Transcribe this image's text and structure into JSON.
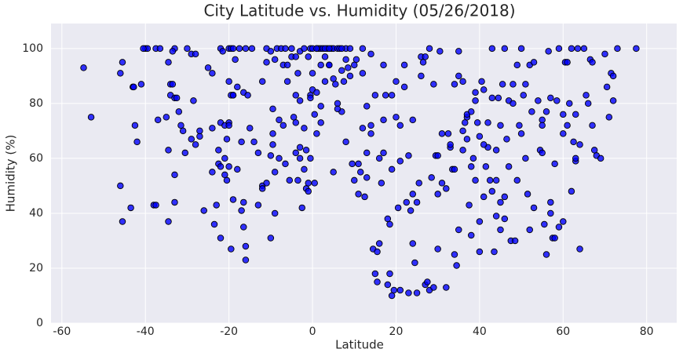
{
  "chart_data": {
    "type": "scatter",
    "title": "City Latitude vs. Humidity (05/26/2018)",
    "x_label": "Latitude",
    "y_label": "Humidity (%)",
    "color": "#0000ff",
    "edge_color": "#000000",
    "grid": true,
    "xlim": [
      -62.6,
      87.2
    ],
    "ylim": [
      0,
      109.1
    ],
    "xticks": [
      -60,
      -40,
      -20,
      0,
      20,
      40,
      60,
      80
    ],
    "yticks": [
      0,
      20,
      40,
      60,
      80,
      100
    ],
    "x": [
      -54.8,
      -53,
      -46,
      -45.5,
      -46,
      -45.5,
      -43,
      -42.8,
      -42.5,
      -42,
      -41,
      -43.5,
      -40,
      -39.5,
      -37.5,
      -36.5,
      -38,
      -37.5,
      -37,
      -35,
      -34,
      -34.5,
      -34,
      -33.5,
      -33,
      -32.5,
      -33,
      -33.5,
      -34.5,
      -34.5,
      -33,
      -33,
      -32,
      -31.5,
      -31,
      -30.5,
      -30,
      -29,
      -29,
      -28.5,
      -28,
      -28,
      -27,
      -27,
      -26,
      -25,
      -24,
      -24,
      -24,
      -23.5,
      -23,
      -22.5,
      -22.5,
      -22,
      -22,
      -22,
      -21.5,
      -22,
      -21,
      -21,
      -20.5,
      -20,
      -20,
      -20,
      -19.5,
      -19,
      -20,
      -19.5,
      -19,
      -19,
      -18.5,
      -18,
      -19.5,
      -19,
      -18,
      -20,
      -21,
      -20.5,
      -17.5,
      -17,
      -16.5,
      -17,
      -16.5,
      -16.5,
      -16,
      -16,
      -15.5,
      -16,
      -15,
      -14.5,
      -13,
      -12,
      -12,
      -12,
      -11,
      -10,
      -10,
      -9.5,
      -9.5,
      -9.5,
      -9,
      -9,
      -8.5,
      -8,
      -7.5,
      -7,
      -6.5,
      -6.5,
      -6,
      -5.5,
      -5,
      -4.5,
      -4,
      -4,
      -3.5,
      -3.5,
      -3,
      -3,
      -3,
      -2.5,
      -2,
      -1.5,
      -1.5,
      -1,
      -1,
      -0.5,
      -0.5,
      -0.5,
      -0.5,
      0,
      0,
      0.5,
      1,
      0.5,
      1,
      1.5,
      2,
      2,
      2.5,
      3,
      3.5,
      4,
      4.5,
      5,
      5,
      5.5,
      6,
      6.5,
      7,
      7.5,
      8,
      8,
      8.5,
      9,
      9.5,
      10,
      10,
      10.5,
      11,
      11,
      11.5,
      12,
      12,
      12.5,
      13,
      13,
      14,
      14,
      14.5,
      15,
      15,
      15.5,
      15.5,
      16,
      16,
      16.5,
      17,
      17,
      17.5,
      18,
      18,
      18.5,
      18.5,
      19,
      19,
      19.5,
      20,
      20,
      20.5,
      21,
      21,
      22,
      22,
      22.5,
      23,
      23,
      23.5,
      24,
      24,
      24.5,
      25,
      25,
      25.5,
      26,
      26.5,
      27,
      27.5,
      28,
      28,
      28.5,
      29,
      29,
      29.5,
      30,
      30,
      30.5,
      31,
      31,
      32,
      32,
      32.5,
      33,
      33.5,
      34,
      34,
      34.5,
      35,
      35,
      36,
      36,
      36.5,
      37,
      37,
      37.5,
      38,
      38,
      38.5,
      39,
      39,
      39.5,
      40,
      40,
      40,
      40.5,
      41,
      41,
      41.5,
      42,
      42.5,
      43,
      43,
      43.5,
      44,
      44,
      44.5,
      45,
      45,
      45.5,
      46,
      46,
      46.5,
      47,
      47.5,
      48,
      48.5,
      49,
      49,
      49.5,
      50,
      50,
      50.5,
      51,
      51,
      51.5,
      52,
      52,
      52.5,
      53,
      54,
      54.5,
      55,
      55,
      55.5,
      56,
      56,
      56.5,
      57,
      57,
      57.5,
      58,
      58.5,
      59,
      59,
      60,
      60,
      60.5,
      61,
      61.5,
      62,
      62,
      62.5,
      63,
      63,
      63.5,
      64,
      64,
      65,
      65.5,
      66,
      66.5,
      67,
      67,
      67.5,
      68,
      69,
      70,
      70.5,
      71,
      71.5,
      72,
      72,
      73,
      77.5,
      -40.5,
      -5,
      -4,
      0,
      1,
      3,
      4,
      7,
      9,
      -2,
      -1,
      2,
      3,
      4,
      6,
      7,
      8,
      5,
      6,
      2,
      1,
      -2,
      -3,
      -4,
      -6,
      -7,
      -8,
      -9,
      -11,
      -13,
      -14,
      -10,
      -11,
      12,
      13,
      14,
      17,
      19,
      21,
      24,
      26,
      27,
      30,
      33,
      34,
      35,
      36,
      37,
      38,
      39,
      41,
      42,
      43,
      44,
      45,
      46,
      47,
      48,
      53,
      55,
      57,
      58,
      60,
      61,
      63
    ],
    "values": [
      93,
      75,
      91,
      95,
      50,
      37,
      86,
      86,
      72,
      66,
      87,
      42,
      100,
      100,
      100,
      100,
      43,
      43,
      74,
      75,
      83,
      95,
      87,
      87,
      82,
      82,
      100,
      99,
      63,
      37,
      44,
      54,
      77,
      72,
      70,
      62,
      100,
      98,
      67,
      81,
      98,
      65,
      68,
      70,
      41,
      93,
      91,
      55,
      71,
      36,
      43,
      63,
      58,
      31,
      57,
      100,
      99,
      73,
      72,
      54,
      67,
      73,
      72,
      100,
      100,
      100,
      88,
      83,
      83,
      83,
      96,
      86,
      27,
      45,
      56,
      57,
      60,
      52,
      100,
      66,
      84,
      41,
      35,
      44,
      28,
      23,
      83,
      100,
      71,
      100,
      43,
      88,
      50,
      49,
      100,
      61,
      31,
      78,
      69,
      65,
      96,
      40,
      100,
      60,
      100,
      94,
      58,
      100,
      94,
      52,
      97,
      75,
      62,
      73,
      91,
      52,
      99,
      64,
      60,
      42,
      56,
      63,
      49,
      51,
      48,
      100,
      83,
      82,
      60,
      85,
      91,
      76,
      84,
      51,
      100,
      100,
      100,
      79,
      100,
      97,
      100,
      94,
      100,
      100,
      55,
      87,
      100,
      100,
      77,
      88,
      100,
      66,
      93,
      90,
      58,
      94,
      52,
      96,
      58,
      47,
      55,
      100,
      91,
      46,
      62,
      79,
      98,
      72,
      27,
      83,
      18,
      15,
      26,
      60,
      29,
      51,
      94,
      62,
      83,
      14,
      38,
      36,
      18,
      10,
      56,
      12,
      88,
      75,
      42,
      12,
      59,
      86,
      94,
      44,
      11,
      61,
      41,
      47,
      29,
      22,
      11,
      44,
      51,
      90,
      95,
      14,
      15,
      100,
      12,
      53,
      13,
      87,
      61,
      61,
      27,
      99,
      69,
      51,
      49,
      13,
      69,
      64,
      56,
      87,
      25,
      21,
      90,
      34,
      63,
      88,
      73,
      75,
      67,
      43,
      32,
      57,
      60,
      52,
      84,
      73,
      26,
      68,
      37,
      88,
      46,
      85,
      57,
      64,
      52,
      100,
      48,
      26,
      39,
      63,
      82,
      72,
      34,
      87,
      100,
      46,
      67,
      57,
      30,
      87,
      30,
      52,
      94,
      72,
      100,
      69,
      83,
      87,
      60,
      47,
      94,
      34,
      77,
      42,
      81,
      63,
      74,
      62,
      36,
      77,
      25,
      99,
      44,
      40,
      31,
      58,
      81,
      100,
      35,
      37,
      69,
      95,
      72,
      80,
      100,
      48,
      66,
      59,
      76,
      100,
      27,
      65,
      100,
      83,
      80,
      96,
      95,
      72,
      63,
      61,
      60,
      98,
      86,
      75,
      91,
      81,
      90,
      100,
      100,
      100,
      100,
      97,
      100,
      100,
      100,
      100,
      100,
      100,
      100,
      97,
      94,
      88,
      94,
      80,
      92,
      96,
      89,
      78,
      73,
      69,
      71,
      81,
      83,
      88,
      72,
      74,
      55,
      51,
      62,
      66,
      99,
      95,
      71,
      53,
      69,
      74,
      83,
      72,
      74,
      97,
      97,
      47,
      65,
      56,
      99,
      70,
      76,
      77,
      81,
      65,
      73,
      82,
      52,
      44,
      38,
      81,
      80,
      95,
      72,
      82,
      31,
      76,
      95,
      60
    ]
  }
}
